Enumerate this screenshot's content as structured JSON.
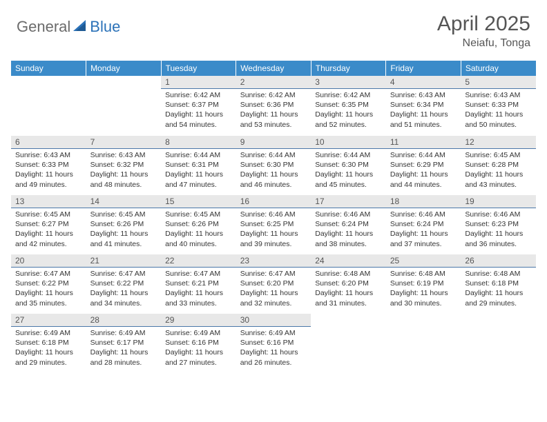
{
  "logo": {
    "part1": "General",
    "part2": "Blue"
  },
  "title": "April 2025",
  "location": "Neiafu, Tonga",
  "colors": {
    "header_bg": "#3b8bc9",
    "header_text": "#ffffff",
    "daynum_bg": "#e8e8e8",
    "daynum_text": "#555555",
    "daynum_border": "#4a76a8",
    "body_text": "#333333",
    "logo_gray": "#6b6b6b",
    "logo_blue": "#2b72b8",
    "title_color": "#555555"
  },
  "weekdays": [
    "Sunday",
    "Monday",
    "Tuesday",
    "Wednesday",
    "Thursday",
    "Friday",
    "Saturday"
  ],
  "weeks": [
    [
      null,
      null,
      {
        "n": "1",
        "sr": "6:42 AM",
        "ss": "6:37 PM",
        "dl": "11 hours and 54 minutes."
      },
      {
        "n": "2",
        "sr": "6:42 AM",
        "ss": "6:36 PM",
        "dl": "11 hours and 53 minutes."
      },
      {
        "n": "3",
        "sr": "6:42 AM",
        "ss": "6:35 PM",
        "dl": "11 hours and 52 minutes."
      },
      {
        "n": "4",
        "sr": "6:43 AM",
        "ss": "6:34 PM",
        "dl": "11 hours and 51 minutes."
      },
      {
        "n": "5",
        "sr": "6:43 AM",
        "ss": "6:33 PM",
        "dl": "11 hours and 50 minutes."
      }
    ],
    [
      {
        "n": "6",
        "sr": "6:43 AM",
        "ss": "6:33 PM",
        "dl": "11 hours and 49 minutes."
      },
      {
        "n": "7",
        "sr": "6:43 AM",
        "ss": "6:32 PM",
        "dl": "11 hours and 48 minutes."
      },
      {
        "n": "8",
        "sr": "6:44 AM",
        "ss": "6:31 PM",
        "dl": "11 hours and 47 minutes."
      },
      {
        "n": "9",
        "sr": "6:44 AM",
        "ss": "6:30 PM",
        "dl": "11 hours and 46 minutes."
      },
      {
        "n": "10",
        "sr": "6:44 AM",
        "ss": "6:30 PM",
        "dl": "11 hours and 45 minutes."
      },
      {
        "n": "11",
        "sr": "6:44 AM",
        "ss": "6:29 PM",
        "dl": "11 hours and 44 minutes."
      },
      {
        "n": "12",
        "sr": "6:45 AM",
        "ss": "6:28 PM",
        "dl": "11 hours and 43 minutes."
      }
    ],
    [
      {
        "n": "13",
        "sr": "6:45 AM",
        "ss": "6:27 PM",
        "dl": "11 hours and 42 minutes."
      },
      {
        "n": "14",
        "sr": "6:45 AM",
        "ss": "6:26 PM",
        "dl": "11 hours and 41 minutes."
      },
      {
        "n": "15",
        "sr": "6:45 AM",
        "ss": "6:26 PM",
        "dl": "11 hours and 40 minutes."
      },
      {
        "n": "16",
        "sr": "6:46 AM",
        "ss": "6:25 PM",
        "dl": "11 hours and 39 minutes."
      },
      {
        "n": "17",
        "sr": "6:46 AM",
        "ss": "6:24 PM",
        "dl": "11 hours and 38 minutes."
      },
      {
        "n": "18",
        "sr": "6:46 AM",
        "ss": "6:24 PM",
        "dl": "11 hours and 37 minutes."
      },
      {
        "n": "19",
        "sr": "6:46 AM",
        "ss": "6:23 PM",
        "dl": "11 hours and 36 minutes."
      }
    ],
    [
      {
        "n": "20",
        "sr": "6:47 AM",
        "ss": "6:22 PM",
        "dl": "11 hours and 35 minutes."
      },
      {
        "n": "21",
        "sr": "6:47 AM",
        "ss": "6:22 PM",
        "dl": "11 hours and 34 minutes."
      },
      {
        "n": "22",
        "sr": "6:47 AM",
        "ss": "6:21 PM",
        "dl": "11 hours and 33 minutes."
      },
      {
        "n": "23",
        "sr": "6:47 AM",
        "ss": "6:20 PM",
        "dl": "11 hours and 32 minutes."
      },
      {
        "n": "24",
        "sr": "6:48 AM",
        "ss": "6:20 PM",
        "dl": "11 hours and 31 minutes."
      },
      {
        "n": "25",
        "sr": "6:48 AM",
        "ss": "6:19 PM",
        "dl": "11 hours and 30 minutes."
      },
      {
        "n": "26",
        "sr": "6:48 AM",
        "ss": "6:18 PM",
        "dl": "11 hours and 29 minutes."
      }
    ],
    [
      {
        "n": "27",
        "sr": "6:49 AM",
        "ss": "6:18 PM",
        "dl": "11 hours and 29 minutes."
      },
      {
        "n": "28",
        "sr": "6:49 AM",
        "ss": "6:17 PM",
        "dl": "11 hours and 28 minutes."
      },
      {
        "n": "29",
        "sr": "6:49 AM",
        "ss": "6:16 PM",
        "dl": "11 hours and 27 minutes."
      },
      {
        "n": "30",
        "sr": "6:49 AM",
        "ss": "6:16 PM",
        "dl": "11 hours and 26 minutes."
      },
      null,
      null,
      null
    ]
  ],
  "labels": {
    "sunrise": "Sunrise:",
    "sunset": "Sunset:",
    "daylight": "Daylight:"
  }
}
